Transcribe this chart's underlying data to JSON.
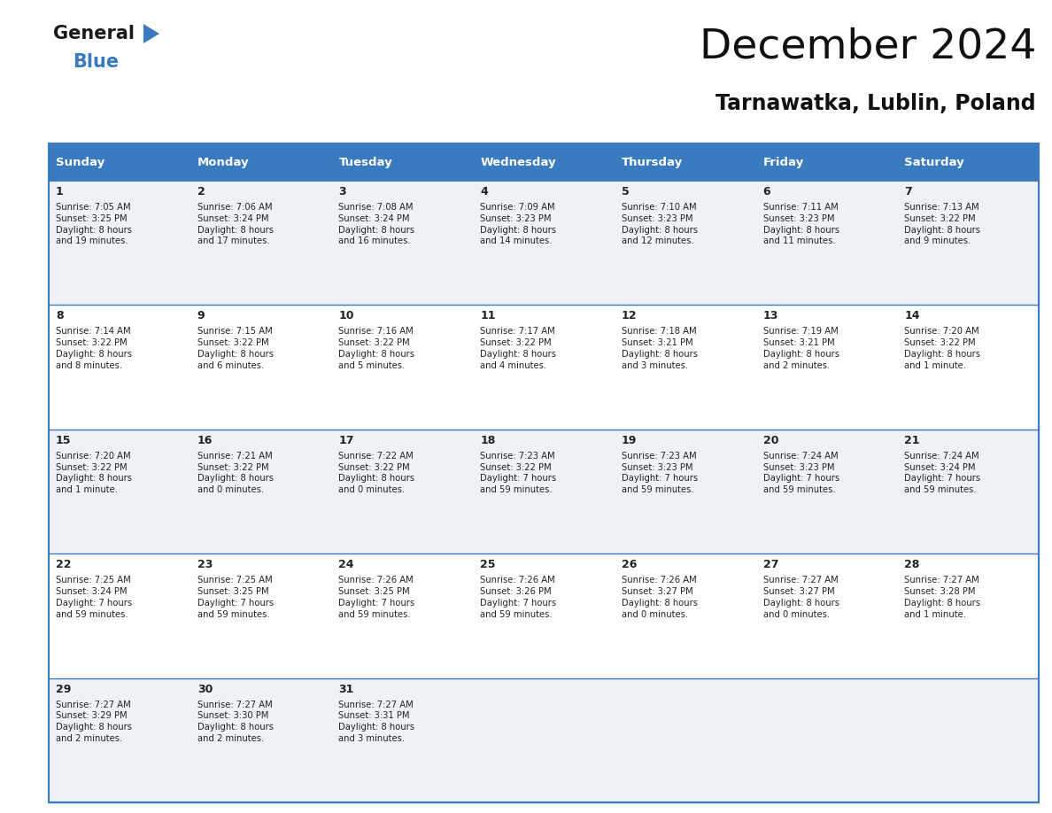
{
  "title": "December 2024",
  "subtitle": "Tarnawatka, Lublin, Poland",
  "header_bg": "#3a7abf",
  "header_text": "#ffffff",
  "cell_bg_even": "#eef2f7",
  "cell_bg_odd": "#ffffff",
  "border_color": "#3a7abf",
  "text_color": "#222222",
  "days_of_week": [
    "Sunday",
    "Monday",
    "Tuesday",
    "Wednesday",
    "Thursday",
    "Friday",
    "Saturday"
  ],
  "calendar": [
    [
      {
        "day": 1,
        "sunrise": "7:05 AM",
        "sunset": "3:25 PM",
        "daylight": "8 hours\nand 19 minutes."
      },
      {
        "day": 2,
        "sunrise": "7:06 AM",
        "sunset": "3:24 PM",
        "daylight": "8 hours\nand 17 minutes."
      },
      {
        "day": 3,
        "sunrise": "7:08 AM",
        "sunset": "3:24 PM",
        "daylight": "8 hours\nand 16 minutes."
      },
      {
        "day": 4,
        "sunrise": "7:09 AM",
        "sunset": "3:23 PM",
        "daylight": "8 hours\nand 14 minutes."
      },
      {
        "day": 5,
        "sunrise": "7:10 AM",
        "sunset": "3:23 PM",
        "daylight": "8 hours\nand 12 minutes."
      },
      {
        "day": 6,
        "sunrise": "7:11 AM",
        "sunset": "3:23 PM",
        "daylight": "8 hours\nand 11 minutes."
      },
      {
        "day": 7,
        "sunrise": "7:13 AM",
        "sunset": "3:22 PM",
        "daylight": "8 hours\nand 9 minutes."
      }
    ],
    [
      {
        "day": 8,
        "sunrise": "7:14 AM",
        "sunset": "3:22 PM",
        "daylight": "8 hours\nand 8 minutes."
      },
      {
        "day": 9,
        "sunrise": "7:15 AM",
        "sunset": "3:22 PM",
        "daylight": "8 hours\nand 6 minutes."
      },
      {
        "day": 10,
        "sunrise": "7:16 AM",
        "sunset": "3:22 PM",
        "daylight": "8 hours\nand 5 minutes."
      },
      {
        "day": 11,
        "sunrise": "7:17 AM",
        "sunset": "3:22 PM",
        "daylight": "8 hours\nand 4 minutes."
      },
      {
        "day": 12,
        "sunrise": "7:18 AM",
        "sunset": "3:21 PM",
        "daylight": "8 hours\nand 3 minutes."
      },
      {
        "day": 13,
        "sunrise": "7:19 AM",
        "sunset": "3:21 PM",
        "daylight": "8 hours\nand 2 minutes."
      },
      {
        "day": 14,
        "sunrise": "7:20 AM",
        "sunset": "3:22 PM",
        "daylight": "8 hours\nand 1 minute."
      }
    ],
    [
      {
        "day": 15,
        "sunrise": "7:20 AM",
        "sunset": "3:22 PM",
        "daylight": "8 hours\nand 1 minute."
      },
      {
        "day": 16,
        "sunrise": "7:21 AM",
        "sunset": "3:22 PM",
        "daylight": "8 hours\nand 0 minutes."
      },
      {
        "day": 17,
        "sunrise": "7:22 AM",
        "sunset": "3:22 PM",
        "daylight": "8 hours\nand 0 minutes."
      },
      {
        "day": 18,
        "sunrise": "7:23 AM",
        "sunset": "3:22 PM",
        "daylight": "7 hours\nand 59 minutes."
      },
      {
        "day": 19,
        "sunrise": "7:23 AM",
        "sunset": "3:23 PM",
        "daylight": "7 hours\nand 59 minutes."
      },
      {
        "day": 20,
        "sunrise": "7:24 AM",
        "sunset": "3:23 PM",
        "daylight": "7 hours\nand 59 minutes."
      },
      {
        "day": 21,
        "sunrise": "7:24 AM",
        "sunset": "3:24 PM",
        "daylight": "7 hours\nand 59 minutes."
      }
    ],
    [
      {
        "day": 22,
        "sunrise": "7:25 AM",
        "sunset": "3:24 PM",
        "daylight": "7 hours\nand 59 minutes."
      },
      {
        "day": 23,
        "sunrise": "7:25 AM",
        "sunset": "3:25 PM",
        "daylight": "7 hours\nand 59 minutes."
      },
      {
        "day": 24,
        "sunrise": "7:26 AM",
        "sunset": "3:25 PM",
        "daylight": "7 hours\nand 59 minutes."
      },
      {
        "day": 25,
        "sunrise": "7:26 AM",
        "sunset": "3:26 PM",
        "daylight": "7 hours\nand 59 minutes."
      },
      {
        "day": 26,
        "sunrise": "7:26 AM",
        "sunset": "3:27 PM",
        "daylight": "8 hours\nand 0 minutes."
      },
      {
        "day": 27,
        "sunrise": "7:27 AM",
        "sunset": "3:27 PM",
        "daylight": "8 hours\nand 0 minutes."
      },
      {
        "day": 28,
        "sunrise": "7:27 AM",
        "sunset": "3:28 PM",
        "daylight": "8 hours\nand 1 minute."
      }
    ],
    [
      {
        "day": 29,
        "sunrise": "7:27 AM",
        "sunset": "3:29 PM",
        "daylight": "8 hours\nand 2 minutes."
      },
      {
        "day": 30,
        "sunrise": "7:27 AM",
        "sunset": "3:30 PM",
        "daylight": "8 hours\nand 2 minutes."
      },
      {
        "day": 31,
        "sunrise": "7:27 AM",
        "sunset": "3:31 PM",
        "daylight": "8 hours\nand 3 minutes."
      },
      null,
      null,
      null,
      null
    ]
  ],
  "logo_general_color": "#1a1a1a",
  "logo_blue_color": "#3a7abf",
  "logo_triangle_color": "#3a7abf",
  "fig_width": 11.88,
  "fig_height": 9.18,
  "dpi": 100
}
